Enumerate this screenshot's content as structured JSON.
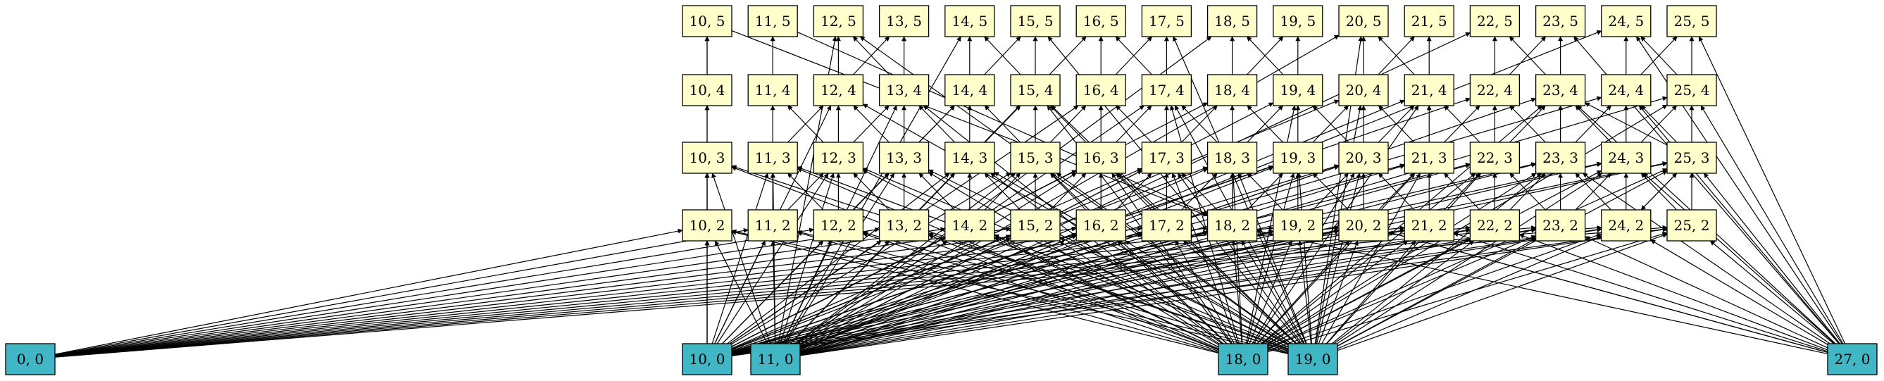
{
  "colors": {
    "source_fill": "#41b6c4",
    "node_fill": "#ffffcc",
    "stroke": "#000000"
  },
  "source_nodes": [
    "0, 0",
    "10, 0",
    "11, 0",
    "18, 0",
    "19, 0",
    "27, 0"
  ],
  "grid_nodes": {
    "row5": [
      "10, 5",
      "11, 5",
      "12, 5",
      "13, 5",
      "14, 5",
      "15, 5",
      "16, 5",
      "17, 5",
      "18, 5",
      "19, 5",
      "20, 5",
      "21, 5",
      "22, 5",
      "23, 5",
      "24, 5",
      "25, 5"
    ],
    "row4": [
      "10, 4",
      "11, 4",
      "12, 4",
      "13, 4",
      "14, 4",
      "15, 4",
      "16, 4",
      "17, 4",
      "18, 4",
      "19, 4",
      "20, 4",
      "21, 4",
      "22, 4",
      "23, 4",
      "24, 4",
      "25, 4"
    ],
    "row3": [
      "10, 3",
      "11, 3",
      "12, 3",
      "13, 3",
      "14, 3",
      "15, 3",
      "16, 3",
      "17, 3",
      "18, 3",
      "19, 3",
      "20, 3",
      "21, 3",
      "22, 3",
      "23, 3",
      "24, 3",
      "25, 3"
    ],
    "row2": [
      "10, 2",
      "11, 2",
      "12, 2",
      "13, 2",
      "14, 2",
      "15, 2",
      "16, 2",
      "17, 2",
      "18, 2",
      "19, 2",
      "20, 2",
      "21, 2",
      "22, 2",
      "23, 2",
      "24, 2",
      "25, 2"
    ]
  }
}
